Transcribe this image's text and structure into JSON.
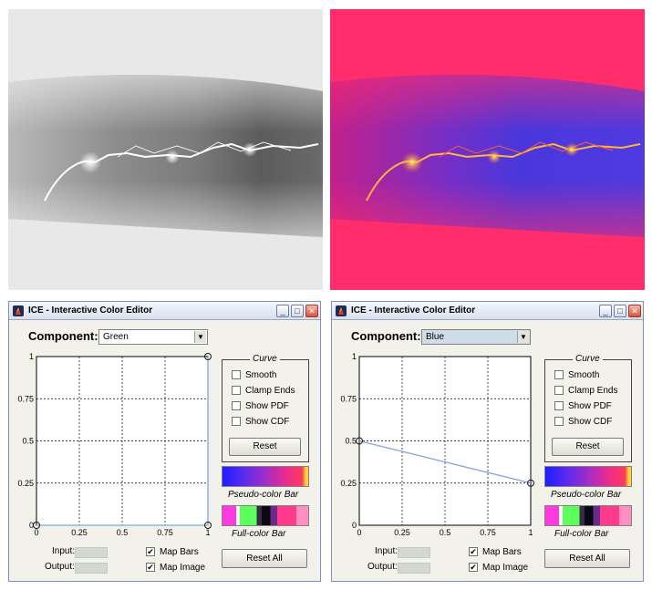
{
  "windows": [
    {
      "title": "ICE - Interactive Color Editor",
      "component_label": "Component:",
      "component_value": "Green",
      "curve": {
        "title": "Curve",
        "options": [
          {
            "label": "Smooth",
            "checked": false
          },
          {
            "label": "Clamp Ends",
            "checked": false
          },
          {
            "label": "Show PDF",
            "checked": false
          },
          {
            "label": "Show CDF",
            "checked": false
          }
        ],
        "reset_label": "Reset"
      },
      "plot": {
        "y_ticks": [
          "1",
          "0.75",
          "0.5",
          "0.25",
          "0"
        ],
        "x_ticks": [
          "0",
          "0.25",
          "0.5",
          "0.75",
          "1"
        ],
        "curve_points": [
          [
            0,
            0
          ],
          [
            1,
            0
          ],
          [
            1,
            1
          ]
        ],
        "control_points": [
          [
            0,
            0
          ],
          [
            1,
            0
          ],
          [
            1,
            1
          ]
        ]
      },
      "pseudo_color_bar_label": "Pseudo-color Bar",
      "full_color_bar_label": "Full-color Bar",
      "input_label": "Input:",
      "output_label": "Output:",
      "map_bars": {
        "label": "Map Bars",
        "checked": true
      },
      "map_image": {
        "label": "Map Image",
        "checked": true
      },
      "reset_all_label": "Reset All"
    },
    {
      "title": "ICE - Interactive Color Editor",
      "component_label": "Component:",
      "component_value": "Blue",
      "curve": {
        "title": "Curve",
        "options": [
          {
            "label": "Smooth",
            "checked": false
          },
          {
            "label": "Clamp Ends",
            "checked": false
          },
          {
            "label": "Show PDF",
            "checked": false
          },
          {
            "label": "Show CDF",
            "checked": false
          }
        ],
        "reset_label": "Reset"
      },
      "plot": {
        "y_ticks": [
          "1",
          "0.75",
          "0.5",
          "0.25",
          "0"
        ],
        "x_ticks": [
          "0",
          "0.25",
          "0.5",
          "0.75",
          "1"
        ],
        "curve_points": [
          [
            0,
            0.5
          ],
          [
            1,
            0.25
          ]
        ],
        "control_points": [
          [
            0,
            0.5
          ],
          [
            1,
            0.25
          ]
        ]
      },
      "pseudo_color_bar_label": "Pseudo-color Bar",
      "full_color_bar_label": "Full-color Bar",
      "input_label": "Input:",
      "output_label": "Output:",
      "map_bars": {
        "label": "Map Bars",
        "checked": true
      },
      "map_image": {
        "label": "Map Image",
        "checked": true
      },
      "reset_all_label": "Reset All"
    }
  ],
  "colors": {
    "curve_line": "#7ea6e0",
    "window_bg": "#f2f1ea",
    "pseudo_background": "#ff2d6c",
    "pseudo_band": "#4a3ad8"
  }
}
